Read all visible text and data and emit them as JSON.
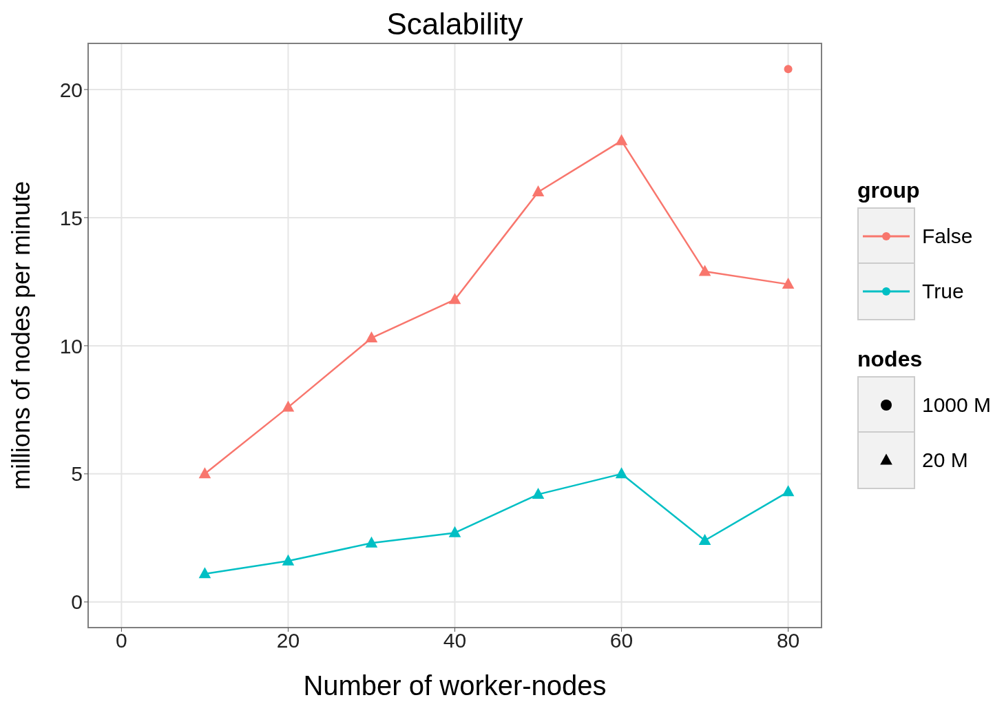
{
  "chart_data": {
    "type": "line",
    "title": "Scalability",
    "xlabel": "Number of worker-nodes",
    "ylabel": "millions of nodes per minute",
    "legend_title": "group",
    "legend": "right",
    "grid": true,
    "x": [
      10,
      20,
      30,
      40,
      50,
      60,
      70,
      80
    ],
    "xlim": [
      -4,
      84
    ],
    "xticks": [
      0,
      20,
      40,
      60,
      80
    ],
    "ylim": [
      -1,
      21.8
    ],
    "yticks": [
      0,
      5,
      10,
      15,
      20
    ],
    "series": [
      {
        "name": "False",
        "color": "#f8766d",
        "marker": "triangle",
        "values": [
          5.0,
          7.6,
          10.3,
          11.8,
          16.0,
          18.0,
          12.9,
          12.4
        ]
      },
      {
        "name": "True",
        "color": "#00bfc4",
        "marker": "triangle",
        "values": [
          1.1,
          1.6,
          2.3,
          2.7,
          4.2,
          5.0,
          2.4,
          4.3
        ]
      },
      {
        "type": "scatter",
        "color": "#f8766d",
        "marker": "circle",
        "x": [
          80
        ],
        "values": [
          20.8
        ]
      }
    ],
    "annotations": [
      "nodes",
      "1000 M",
      "20 M"
    ]
  }
}
